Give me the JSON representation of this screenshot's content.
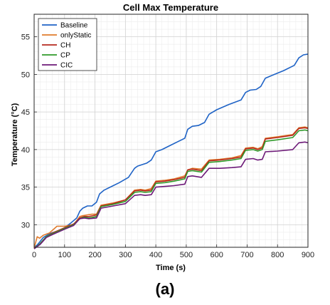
{
  "chart_data": {
    "type": "line",
    "title": "Cell Max Temperature",
    "xlabel": "Time (s)",
    "ylabel": "Temperature (°C)",
    "xlim": [
      0,
      900
    ],
    "ylim": [
      27,
      58
    ],
    "xticks": [
      0,
      100,
      200,
      300,
      400,
      500,
      600,
      700,
      800,
      900
    ],
    "yticks": [
      30,
      35,
      40,
      45,
      50,
      55
    ],
    "grid": true,
    "legend_position": "top-left",
    "series": [
      {
        "name": "Baseline",
        "color": "#1f63c6",
        "points": [
          [
            0,
            27
          ],
          [
            10,
            27.3
          ],
          [
            20,
            27.8
          ],
          [
            30,
            28.3
          ],
          [
            50,
            28.8
          ],
          [
            80,
            29.2
          ],
          [
            100,
            29.6
          ],
          [
            120,
            30.2
          ],
          [
            140,
            30.9
          ],
          [
            150,
            31.8
          ],
          [
            160,
            32.2
          ],
          [
            175,
            32.5
          ],
          [
            190,
            32.5
          ],
          [
            205,
            33.0
          ],
          [
            215,
            34.1
          ],
          [
            230,
            34.6
          ],
          [
            250,
            35.0
          ],
          [
            280,
            35.6
          ],
          [
            310,
            36.3
          ],
          [
            330,
            37.5
          ],
          [
            340,
            37.8
          ],
          [
            355,
            38.0
          ],
          [
            370,
            38.2
          ],
          [
            385,
            38.6
          ],
          [
            400,
            39.7
          ],
          [
            420,
            40.0
          ],
          [
            450,
            40.6
          ],
          [
            480,
            41.2
          ],
          [
            495,
            41.5
          ],
          [
            505,
            42.7
          ],
          [
            520,
            43.1
          ],
          [
            540,
            43.2
          ],
          [
            560,
            43.6
          ],
          [
            575,
            44.7
          ],
          [
            600,
            45.3
          ],
          [
            640,
            46.0
          ],
          [
            680,
            46.6
          ],
          [
            695,
            47.6
          ],
          [
            710,
            47.9
          ],
          [
            730,
            48.0
          ],
          [
            745,
            48.4
          ],
          [
            760,
            49.5
          ],
          [
            790,
            50.0
          ],
          [
            820,
            50.5
          ],
          [
            855,
            51.2
          ],
          [
            870,
            52.2
          ],
          [
            885,
            52.6
          ],
          [
            900,
            52.7
          ]
        ]
      },
      {
        "name": "onlyStatic",
        "color": "#e07b2d",
        "points": [
          [
            0,
            26.9
          ],
          [
            10,
            28.4
          ],
          [
            18,
            28.2
          ],
          [
            30,
            28.6
          ],
          [
            50,
            28.9
          ],
          [
            75,
            29.8
          ],
          [
            100,
            29.8
          ],
          [
            130,
            30.0
          ],
          [
            150,
            31.1
          ],
          [
            160,
            31.2
          ],
          [
            175,
            31.3
          ],
          [
            190,
            31.4
          ],
          [
            205,
            31.4
          ],
          [
            220,
            32.6
          ],
          [
            260,
            32.9
          ],
          [
            300,
            33.3
          ],
          [
            330,
            34.6
          ],
          [
            350,
            34.7
          ],
          [
            365,
            34.6
          ],
          [
            385,
            34.8
          ],
          [
            400,
            35.8
          ],
          [
            430,
            35.9
          ],
          [
            460,
            36.1
          ],
          [
            495,
            36.5
          ],
          [
            505,
            37.3
          ],
          [
            520,
            37.5
          ],
          [
            550,
            37.4
          ],
          [
            575,
            38.6
          ],
          [
            610,
            38.7
          ],
          [
            650,
            38.9
          ],
          [
            680,
            39.2
          ],
          [
            695,
            40.2
          ],
          [
            720,
            40.3
          ],
          [
            735,
            40.1
          ],
          [
            750,
            40.4
          ],
          [
            760,
            41.5
          ],
          [
            800,
            41.7
          ],
          [
            850,
            42.0
          ],
          [
            870,
            42.9
          ],
          [
            890,
            43.0
          ],
          [
            900,
            42.9
          ]
        ]
      },
      {
        "name": "CH",
        "color": "#b62a1e",
        "points": [
          [
            0,
            26.8
          ],
          [
            20,
            27.5
          ],
          [
            40,
            28.4
          ],
          [
            60,
            28.9
          ],
          [
            100,
            29.6
          ],
          [
            130,
            30.1
          ],
          [
            150,
            30.9
          ],
          [
            165,
            31.1
          ],
          [
            180,
            31.1
          ],
          [
            205,
            31.3
          ],
          [
            220,
            32.5
          ],
          [
            260,
            32.8
          ],
          [
            300,
            33.3
          ],
          [
            330,
            34.5
          ],
          [
            350,
            34.6
          ],
          [
            365,
            34.5
          ],
          [
            385,
            34.6
          ],
          [
            400,
            35.7
          ],
          [
            430,
            35.8
          ],
          [
            460,
            36.0
          ],
          [
            495,
            36.3
          ],
          [
            505,
            37.3
          ],
          [
            520,
            37.4
          ],
          [
            550,
            37.2
          ],
          [
            575,
            38.5
          ],
          [
            610,
            38.6
          ],
          [
            650,
            38.8
          ],
          [
            680,
            39.0
          ],
          [
            695,
            40.1
          ],
          [
            720,
            40.2
          ],
          [
            735,
            40.0
          ],
          [
            750,
            40.2
          ],
          [
            760,
            41.4
          ],
          [
            800,
            41.6
          ],
          [
            850,
            41.9
          ],
          [
            870,
            42.8
          ],
          [
            890,
            42.9
          ],
          [
            900,
            42.8
          ]
        ]
      },
      {
        "name": "CP",
        "color": "#2f9a2a",
        "points": [
          [
            0,
            26.8
          ],
          [
            20,
            27.5
          ],
          [
            40,
            28.4
          ],
          [
            60,
            28.8
          ],
          [
            100,
            29.5
          ],
          [
            130,
            30.0
          ],
          [
            150,
            30.8
          ],
          [
            165,
            31.0
          ],
          [
            180,
            30.9
          ],
          [
            205,
            31.1
          ],
          [
            220,
            32.4
          ],
          [
            260,
            32.7
          ],
          [
            300,
            33.1
          ],
          [
            330,
            34.3
          ],
          [
            350,
            34.4
          ],
          [
            365,
            34.3
          ],
          [
            385,
            34.4
          ],
          [
            400,
            35.5
          ],
          [
            430,
            35.6
          ],
          [
            460,
            35.8
          ],
          [
            495,
            36.1
          ],
          [
            505,
            37.1
          ],
          [
            520,
            37.2
          ],
          [
            550,
            37.0
          ],
          [
            575,
            38.3
          ],
          [
            610,
            38.4
          ],
          [
            650,
            38.6
          ],
          [
            680,
            38.8
          ],
          [
            695,
            39.9
          ],
          [
            720,
            40.0
          ],
          [
            735,
            39.8
          ],
          [
            750,
            40.0
          ],
          [
            760,
            41.1
          ],
          [
            800,
            41.3
          ],
          [
            850,
            41.6
          ],
          [
            870,
            42.5
          ],
          [
            890,
            42.6
          ],
          [
            900,
            42.5
          ]
        ]
      },
      {
        "name": "CIC",
        "color": "#6d1a78",
        "points": [
          [
            0,
            26.8
          ],
          [
            20,
            27.4
          ],
          [
            40,
            28.3
          ],
          [
            60,
            28.7
          ],
          [
            100,
            29.4
          ],
          [
            130,
            29.9
          ],
          [
            150,
            30.8
          ],
          [
            165,
            30.9
          ],
          [
            180,
            30.8
          ],
          [
            205,
            30.9
          ],
          [
            220,
            32.2
          ],
          [
            260,
            32.5
          ],
          [
            300,
            32.8
          ],
          [
            330,
            33.9
          ],
          [
            350,
            34.0
          ],
          [
            365,
            33.9
          ],
          [
            385,
            34.0
          ],
          [
            400,
            35.0
          ],
          [
            430,
            35.1
          ],
          [
            460,
            35.2
          ],
          [
            495,
            35.4
          ],
          [
            505,
            36.4
          ],
          [
            520,
            36.5
          ],
          [
            550,
            36.3
          ],
          [
            575,
            37.5
          ],
          [
            610,
            37.5
          ],
          [
            650,
            37.6
          ],
          [
            680,
            37.7
          ],
          [
            695,
            38.7
          ],
          [
            720,
            38.8
          ],
          [
            735,
            38.6
          ],
          [
            750,
            38.7
          ],
          [
            760,
            39.7
          ],
          [
            800,
            39.8
          ],
          [
            850,
            40.0
          ],
          [
            870,
            40.9
          ],
          [
            890,
            41.0
          ],
          [
            900,
            40.9
          ]
        ]
      }
    ]
  },
  "caption": "(a)"
}
